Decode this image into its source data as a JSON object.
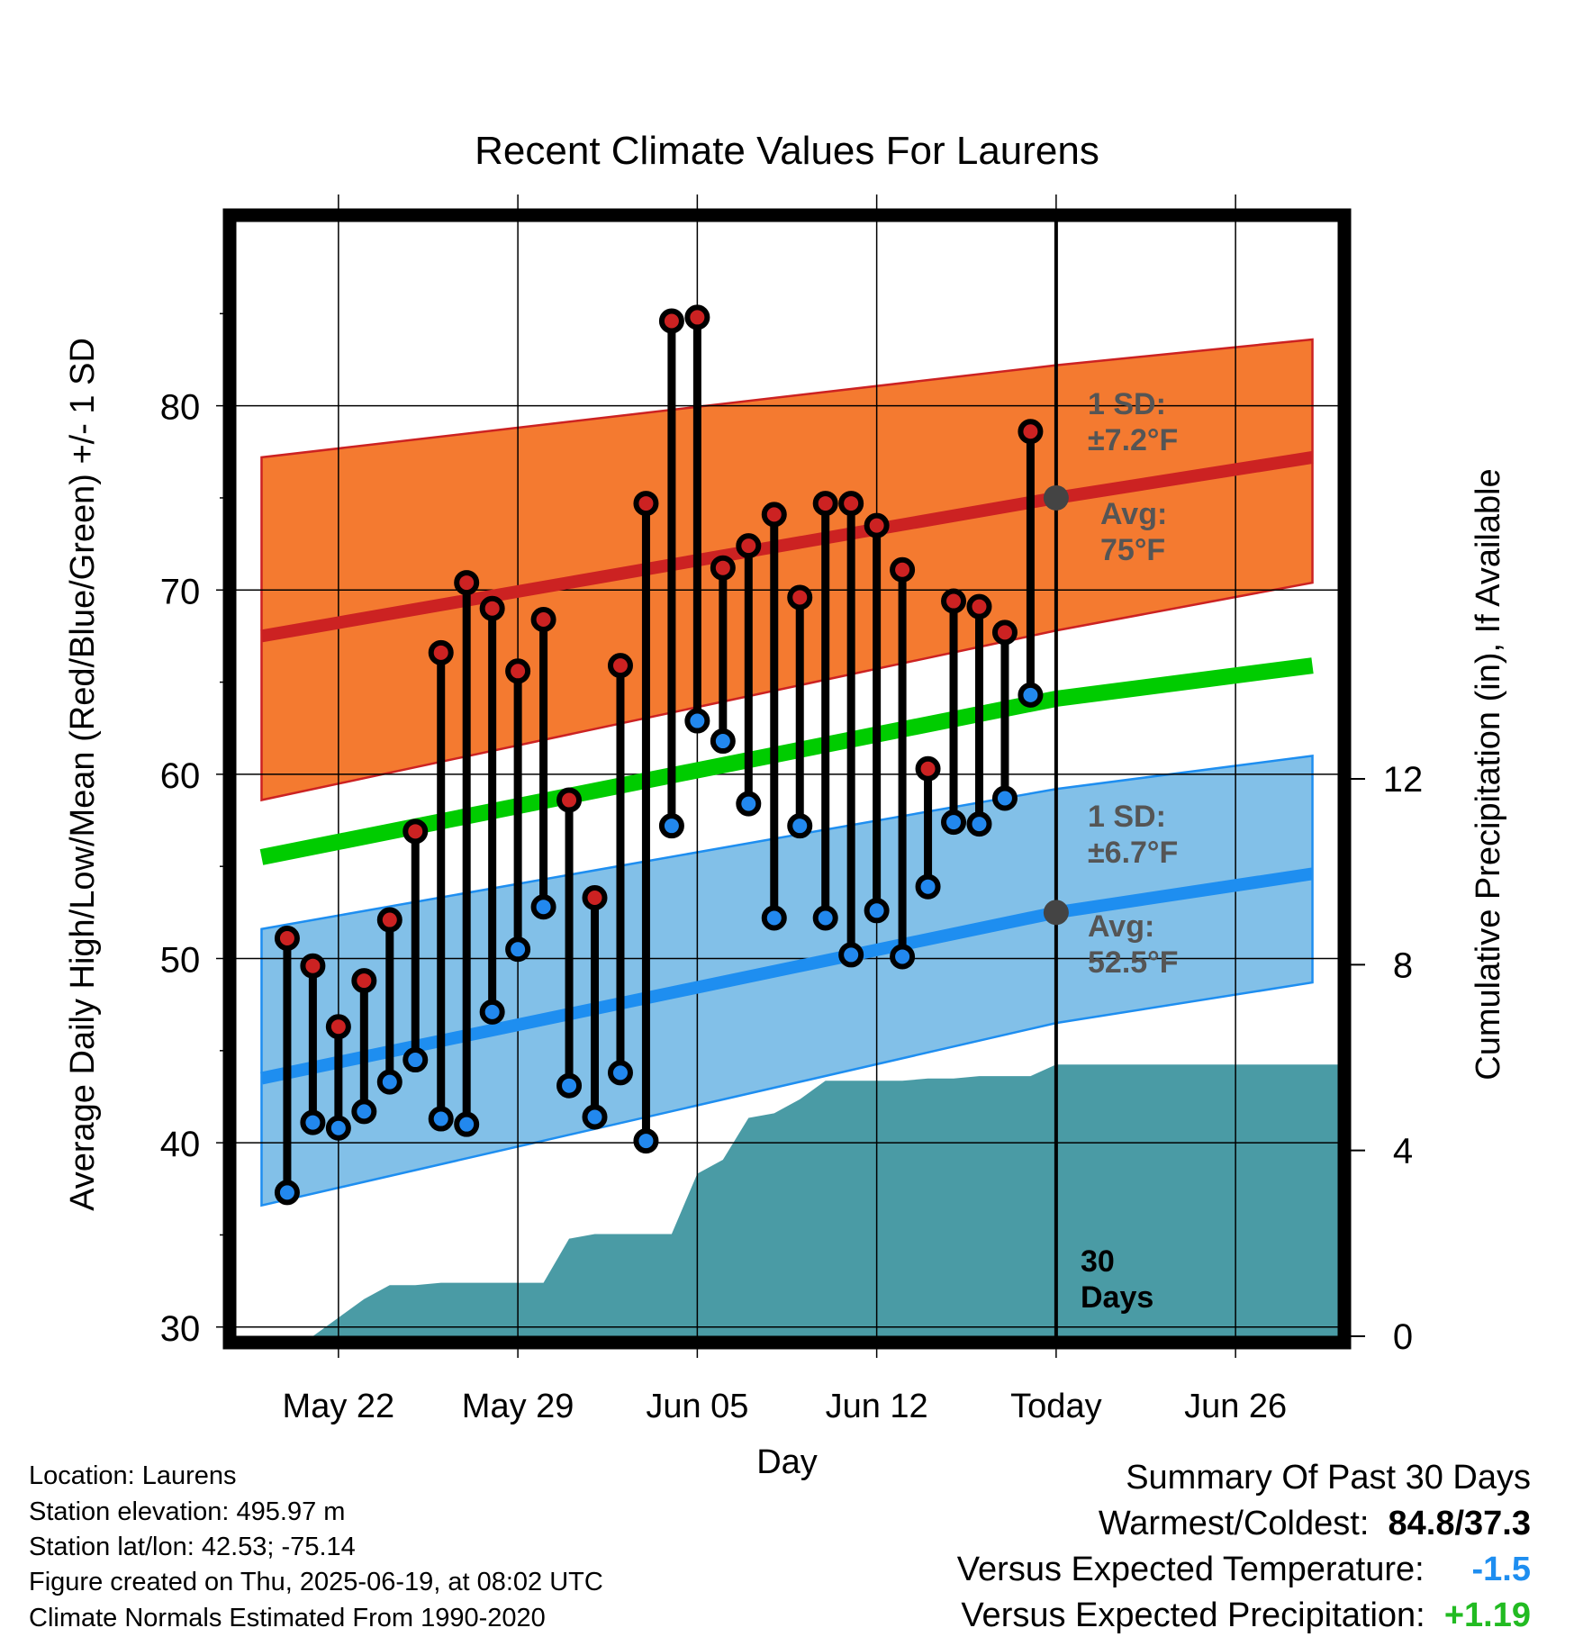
{
  "chart_data": {
    "type": "line",
    "title": "Recent Climate Values For Laurens",
    "xlabel": "Day",
    "ylabel": "Average Daily High/Low/Mean (Red/Blue/Green) +/- 1 SD",
    "y2label": "Cumulative Precipitation (in), If Available",
    "ylim": [
      29.5,
      90
    ],
    "y2lim": [
      0,
      24
    ],
    "xlim": [
      "2025-05-18",
      "2025-06-30"
    ],
    "x_tick_labels": [
      "May 22",
      "May 29",
      "Jun 05",
      "Jun 12",
      "Today",
      "Jun 26"
    ],
    "x_tick_dates": [
      "2025-05-22",
      "2025-05-29",
      "2025-06-05",
      "2025-06-12",
      "2025-06-19",
      "2025-06-26"
    ],
    "y_ticks": [
      30,
      40,
      50,
      60,
      70,
      80
    ],
    "y2_ticks": [
      0,
      4,
      8,
      12
    ],
    "grid": true,
    "today": "2025-06-19",
    "today_label": "30 Days",
    "normals": {
      "high_avg": {
        "x": [
          "2025-05-19",
          "2025-06-19",
          "2025-06-29"
        ],
        "values": [
          67.5,
          75,
          77.2
        ]
      },
      "high_sd_upper": {
        "x": [
          "2025-05-19",
          "2025-06-19",
          "2025-06-29"
        ],
        "values": [
          77.2,
          82.2,
          83.6
        ]
      },
      "high_sd_lower": {
        "x": [
          "2025-05-19",
          "2025-06-19",
          "2025-06-29"
        ],
        "values": [
          58.6,
          67.8,
          70.4
        ]
      },
      "mean_avg": {
        "x": [
          "2025-05-19",
          "2025-06-19",
          "2025-06-29"
        ],
        "values": [
          55.5,
          64.1,
          65.9
        ]
      },
      "low_avg": {
        "x": [
          "2025-05-19",
          "2025-06-19",
          "2025-06-29"
        ],
        "values": [
          43.5,
          52.5,
          54.6
        ]
      },
      "low_sd_upper": {
        "x": [
          "2025-05-19",
          "2025-06-19",
          "2025-06-29"
        ],
        "values": [
          51.6,
          59.2,
          61
        ]
      },
      "low_sd_lower": {
        "x": [
          "2025-05-19",
          "2025-06-19",
          "2025-06-29"
        ],
        "values": [
          36.6,
          46.5,
          48.7
        ]
      }
    },
    "series": [
      {
        "name": "High",
        "color": "#cc2222",
        "x": [
          "2025-05-20",
          "2025-05-21",
          "2025-05-22",
          "2025-05-23",
          "2025-05-24",
          "2025-05-25",
          "2025-05-26",
          "2025-05-27",
          "2025-05-28",
          "2025-05-29",
          "2025-05-30",
          "2025-05-31",
          "2025-06-01",
          "2025-06-02",
          "2025-06-03",
          "2025-06-04",
          "2025-06-05",
          "2025-06-06",
          "2025-06-07",
          "2025-06-08",
          "2025-06-09",
          "2025-06-10",
          "2025-06-11",
          "2025-06-12",
          "2025-06-13",
          "2025-06-14",
          "2025-06-15",
          "2025-06-16",
          "2025-06-17",
          "2025-06-18"
        ],
        "values": [
          51.1,
          49.6,
          46.3,
          48.8,
          52.1,
          56.9,
          66.6,
          70.4,
          69,
          65.6,
          68.4,
          58.6,
          53.3,
          65.9,
          74.7,
          84.6,
          84.8,
          71.2,
          72.4,
          74.1,
          69.6,
          74.7,
          74.7,
          73.5,
          71.1,
          60.3,
          69.4,
          69.1,
          67.7,
          78.6
        ]
      },
      {
        "name": "Low",
        "color": "#2288ee",
        "x": [
          "2025-05-20",
          "2025-05-21",
          "2025-05-22",
          "2025-05-23",
          "2025-05-24",
          "2025-05-25",
          "2025-05-26",
          "2025-05-27",
          "2025-05-28",
          "2025-05-29",
          "2025-05-30",
          "2025-05-31",
          "2025-06-01",
          "2025-06-02",
          "2025-06-03",
          "2025-06-04",
          "2025-06-05",
          "2025-06-06",
          "2025-06-07",
          "2025-06-08",
          "2025-06-09",
          "2025-06-10",
          "2025-06-11",
          "2025-06-12",
          "2025-06-13",
          "2025-06-14",
          "2025-06-15",
          "2025-06-16",
          "2025-06-17",
          "2025-06-18"
        ],
        "values": [
          37.3,
          41.1,
          40.8,
          41.7,
          43.3,
          44.5,
          41.3,
          41,
          47.1,
          50.5,
          52.8,
          43.1,
          41.4,
          43.8,
          40.1,
          57.2,
          62.9,
          61.8,
          58.4,
          52.2,
          57.2,
          52.2,
          50.2,
          52.6,
          50.1,
          53.9,
          57.4,
          57.3,
          58.7,
          64.3
        ]
      }
    ],
    "precipitation": {
      "name": "Cumulative Precipitation",
      "color": "#4a9ba5",
      "x": [
        "2025-05-18",
        "2025-05-19",
        "2025-05-20",
        "2025-05-21",
        "2025-05-22",
        "2025-05-23",
        "2025-05-24",
        "2025-05-25",
        "2025-05-26",
        "2025-05-27",
        "2025-05-28",
        "2025-05-29",
        "2025-05-30",
        "2025-05-31",
        "2025-06-01",
        "2025-06-02",
        "2025-06-03",
        "2025-06-04",
        "2025-06-05",
        "2025-06-06",
        "2025-06-07",
        "2025-06-08",
        "2025-06-09",
        "2025-06-10",
        "2025-06-11",
        "2025-06-12",
        "2025-06-13",
        "2025-06-14",
        "2025-06-15",
        "2025-06-16",
        "2025-06-17",
        "2025-06-18",
        "2025-06-19",
        "2025-06-30"
      ],
      "values": [
        0,
        0,
        0,
        0,
        0.4,
        0.8,
        1.1,
        1.1,
        1.15,
        1.15,
        1.15,
        1.15,
        1.15,
        2.1,
        2.2,
        2.2,
        2.2,
        2.2,
        3.5,
        3.8,
        4.7,
        4.8,
        5.1,
        5.5,
        5.5,
        5.5,
        5.5,
        5.55,
        5.55,
        5.6,
        5.6,
        5.6,
        5.85,
        5.85
      ]
    },
    "annotations": {
      "high_sd_label": [
        "1 SD:",
        "±7.2°F"
      ],
      "high_avg_label": [
        "Avg:",
        "75°F"
      ],
      "low_sd_label": [
        "1 SD:",
        "±6.7°F"
      ],
      "low_avg_label": [
        "Avg:",
        "52.5°F"
      ],
      "today_marker": [
        "30",
        "Days"
      ]
    },
    "colors": {
      "high_band": "#f47a30",
      "high_avg": "#cc2222",
      "mean_avg": "#00cc00",
      "low_band": "#82c0e8",
      "low_avg": "#1e8ef0",
      "precip": "#4a9ba5",
      "avg_marker": "#444444"
    }
  },
  "footer": {
    "location": "Location: Laurens",
    "elevation": "Station elevation: 495.97 m",
    "latlon": "Station lat/lon: 42.53; -75.14",
    "created": "Figure created on Thu, 2025-06-19, at 08:02 UTC",
    "normals": "Climate Normals Estimated From 1990-2020"
  },
  "summary": {
    "title": "Summary Of Past 30 Days",
    "warmest_coldest_label": "Warmest/Coldest:",
    "warmest_coldest_value": "84.8/37.3",
    "temp_label": "Versus Expected Temperature:",
    "temp_value": "-1.5",
    "temp_color": "#1e8ef0",
    "precip_label": "Versus Expected Precipitation:",
    "precip_value": "+1.19",
    "precip_color": "#22bb22"
  }
}
